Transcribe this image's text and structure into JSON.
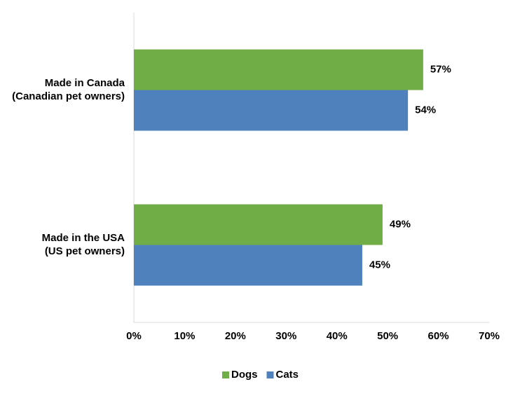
{
  "chart_data": {
    "type": "bar",
    "orientation": "horizontal",
    "categories": [
      [
        "Made in Canada",
        "(Canadian pet owners)"
      ],
      [
        "Made in the USA",
        "(US pet owners)"
      ]
    ],
    "series": [
      {
        "name": "Dogs",
        "color": "#70ad47",
        "values": [
          57,
          49
        ],
        "value_labels": [
          "57%",
          "49%"
        ]
      },
      {
        "name": "Cats",
        "color": "#4f81bd",
        "values": [
          54,
          45
        ],
        "value_labels": [
          "54%",
          "45%"
        ]
      }
    ],
    "xlim": [
      0,
      70
    ],
    "xticks": [
      {
        "value": 0,
        "label": "0%"
      },
      {
        "value": 10,
        "label": "10%"
      },
      {
        "value": 20,
        "label": "20%"
      },
      {
        "value": 30,
        "label": "30%"
      },
      {
        "value": 40,
        "label": "40%"
      },
      {
        "value": 50,
        "label": "50%"
      },
      {
        "value": 60,
        "label": "60%"
      },
      {
        "value": 70,
        "label": "70%"
      }
    ],
    "grid": false,
    "legend": "bottom"
  }
}
